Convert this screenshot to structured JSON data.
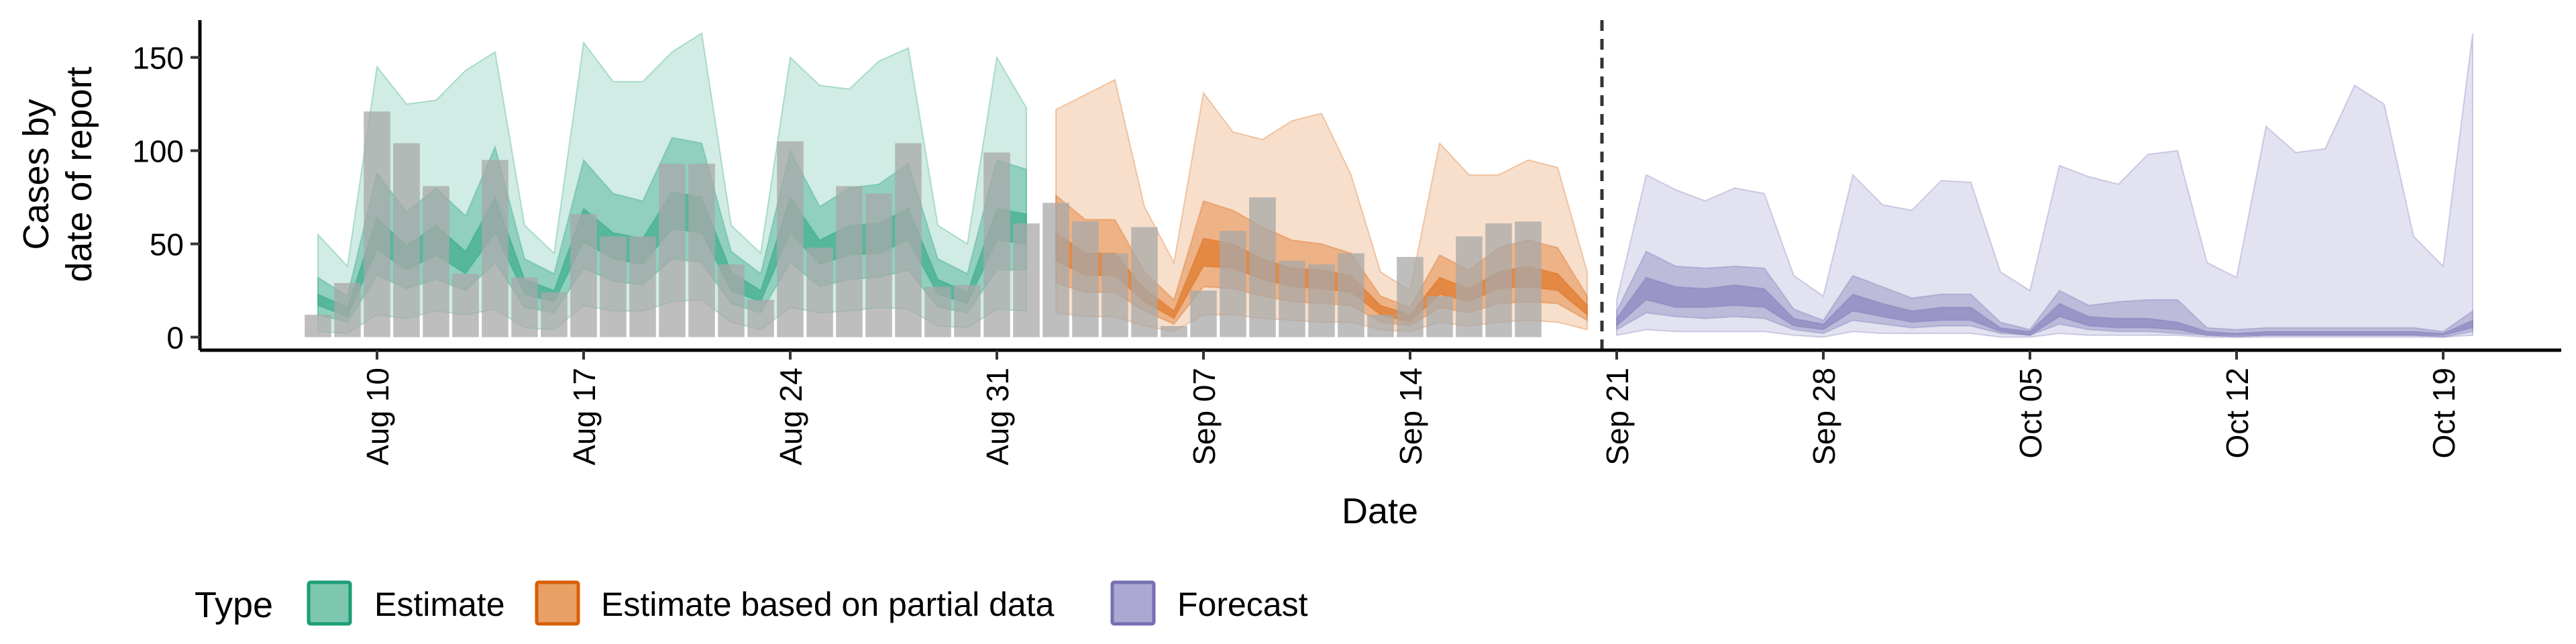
{
  "chart_data": {
    "type": "area",
    "title": "",
    "xlabel": "Date",
    "ylabel_lines": [
      "Cases by",
      "date of report"
    ],
    "ylim": [
      -7,
      170
    ],
    "yticks": [
      0,
      50,
      100,
      150
    ],
    "x_start": "2020-08-08",
    "x_end": "2020-10-20",
    "xlim": [
      "2020-08-04",
      "2020-10-23"
    ],
    "xticks": [
      {
        "date": "2020-08-10",
        "label": "Aug 10"
      },
      {
        "date": "2020-08-17",
        "label": "Aug 17"
      },
      {
        "date": "2020-08-24",
        "label": "Aug 24"
      },
      {
        "date": "2020-08-31",
        "label": "Aug 31"
      },
      {
        "date": "2020-09-07",
        "label": "Sep 07"
      },
      {
        "date": "2020-09-14",
        "label": "Sep 14"
      },
      {
        "date": "2020-09-21",
        "label": "Sep 21"
      },
      {
        "date": "2020-09-28",
        "label": "Sep 28"
      },
      {
        "date": "2020-10-05",
        "label": "Oct 05"
      },
      {
        "date": "2020-10-12",
        "label": "Oct 12"
      },
      {
        "date": "2020-10-19",
        "label": "Oct 19"
      }
    ],
    "forecast_line_date": "2020-09-20",
    "reported_cases": [
      12,
      29,
      121,
      104,
      81,
      34,
      95,
      32,
      24,
      66,
      54,
      54,
      93,
      93,
      39,
      20,
      105,
      48,
      81,
      77,
      104,
      27,
      28,
      99,
      61,
      72,
      62,
      45,
      59,
      6,
      25,
      57,
      75,
      41,
      39,
      45,
      12,
      43,
      22,
      54,
      61,
      62
    ],
    "legend": {
      "title": "Type",
      "position": "bottom",
      "entries": [
        {
          "label": "Estimate",
          "color": "#1b9e77"
        },
        {
          "label": "Estimate based on partial data",
          "color": "#d95f02"
        },
        {
          "label": "Forecast",
          "color": "#7570b3"
        }
      ]
    },
    "series": [
      {
        "name": "Estimate",
        "color": "#1b9e77",
        "start": "2020-08-08",
        "median": [
          20,
          13,
          55,
          42,
          52,
          40,
          65,
          27,
          22,
          60,
          49,
          46,
          68,
          65,
          30,
          22,
          65,
          45,
          52,
          53,
          60,
          27,
          21,
          60,
          58
        ],
        "lower90": [
          3,
          2,
          12,
          10,
          14,
          12,
          15,
          5,
          4,
          17,
          14,
          14,
          19,
          20,
          8,
          4,
          16,
          13,
          14,
          16,
          15,
          6,
          5,
          15,
          14
        ],
        "upper90": [
          55,
          38,
          145,
          125,
          127,
          143,
          153,
          60,
          45,
          158,
          137,
          137,
          153,
          163,
          60,
          45,
          150,
          135,
          133,
          148,
          155,
          60,
          50,
          150,
          123
        ],
        "lower50": [
          12,
          8,
          33,
          26,
          31,
          25,
          40,
          16,
          13,
          37,
          30,
          28,
          42,
          40,
          18,
          13,
          40,
          27,
          31,
          32,
          36,
          16,
          13,
          36,
          36
        ],
        "upper50": [
          32,
          22,
          88,
          67,
          80,
          65,
          102,
          42,
          34,
          95,
          77,
          73,
          107,
          104,
          46,
          34,
          100,
          70,
          80,
          82,
          93,
          42,
          34,
          95,
          90
        ],
        "lower20": [
          17,
          11,
          47,
          36,
          44,
          34,
          56,
          23,
          19,
          51,
          42,
          39,
          58,
          56,
          25,
          19,
          56,
          39,
          44,
          45,
          52,
          23,
          18,
          52,
          50
        ],
        "upper20": [
          23,
          16,
          64,
          49,
          60,
          46,
          75,
          31,
          25,
          69,
          56,
          53,
          78,
          75,
          35,
          25,
          75,
          52,
          60,
          61,
          69,
          31,
          24,
          69,
          66
        ]
      },
      {
        "name": "Estimate based on partial data",
        "color": "#d95f02",
        "start": "2020-09-02",
        "median": [
          48,
          39,
          38,
          22,
          12,
          45,
          43,
          36,
          31,
          30,
          28,
          14,
          10,
          27,
          22,
          30,
          32,
          29,
          14
        ],
        "lower90": [
          13,
          11,
          11,
          6,
          3,
          12,
          12,
          10,
          9,
          8,
          8,
          4,
          3,
          8,
          6,
          8,
          9,
          8,
          4
        ],
        "upper90": [
          122,
          130,
          138,
          70,
          40,
          131,
          110,
          106,
          116,
          120,
          87,
          35,
          25,
          104,
          87,
          87,
          95,
          91,
          35
        ],
        "lower50": [
          29,
          24,
          24,
          14,
          7,
          27,
          26,
          22,
          19,
          18,
          17,
          8,
          6,
          16,
          13,
          18,
          19,
          18,
          9
        ],
        "upper50": [
          76,
          63,
          63,
          35,
          20,
          73,
          68,
          59,
          52,
          50,
          45,
          22,
          16,
          44,
          36,
          48,
          52,
          48,
          22
        ],
        "lower20": [
          41,
          33,
          33,
          19,
          10,
          38,
          37,
          31,
          27,
          26,
          24,
          12,
          8,
          23,
          19,
          26,
          27,
          25,
          12
        ],
        "upper20": [
          56,
          45,
          45,
          26,
          14,
          53,
          50,
          42,
          37,
          36,
          33,
          17,
          12,
          32,
          26,
          35,
          38,
          34,
          17
        ]
      },
      {
        "name": "Forecast",
        "color": "#7570b3",
        "start": "2020-09-21",
        "median": [
          8,
          25,
          21,
          20,
          22,
          20,
          8,
          5,
          18,
          14,
          11,
          12,
          12,
          4,
          2,
          14,
          8,
          6,
          6,
          5,
          2,
          1,
          2,
          2,
          2,
          2,
          2,
          2,
          1,
          6
        ],
        "lower90": [
          1,
          4,
          3,
          3,
          3,
          3,
          1,
          0,
          3,
          2,
          2,
          2,
          2,
          0,
          0,
          2,
          1,
          1,
          1,
          1,
          0,
          0,
          0,
          0,
          0,
          0,
          0,
          0,
          0,
          1
        ],
        "upper90": [
          20,
          87,
          79,
          73,
          80,
          77,
          33,
          22,
          87,
          71,
          68,
          84,
          83,
          35,
          25,
          92,
          86,
          82,
          98,
          100,
          40,
          32,
          113,
          99,
          101,
          135,
          125,
          54,
          38,
          163
        ],
        "lower50": [
          4,
          13,
          11,
          10,
          11,
          10,
          4,
          2,
          9,
          7,
          5,
          6,
          6,
          2,
          1,
          7,
          4,
          3,
          3,
          2,
          1,
          0,
          1,
          1,
          1,
          1,
          1,
          1,
          0,
          3
        ],
        "upper50": [
          14,
          46,
          38,
          37,
          38,
          37,
          15,
          9,
          33,
          27,
          21,
          23,
          23,
          8,
          4,
          25,
          17,
          19,
          20,
          20,
          5,
          4,
          5,
          5,
          5,
          5,
          5,
          5,
          3,
          14
        ],
        "lower20": [
          6,
          20,
          16,
          16,
          17,
          16,
          6,
          4,
          14,
          11,
          8,
          9,
          9,
          3,
          1,
          11,
          6,
          5,
          5,
          4,
          1,
          1,
          1,
          1,
          1,
          1,
          1,
          1,
          1,
          5
        ],
        "upper20": [
          10,
          32,
          27,
          26,
          28,
          26,
          10,
          7,
          23,
          18,
          14,
          16,
          16,
          5,
          3,
          18,
          11,
          10,
          10,
          8,
          3,
          2,
          3,
          3,
          3,
          3,
          3,
          3,
          2,
          9
        ]
      }
    ]
  }
}
